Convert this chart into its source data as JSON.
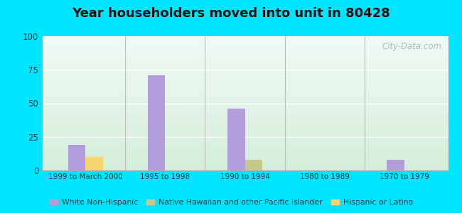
{
  "title": "Year householders moved into unit in 80428",
  "categories": [
    "1999 to March 2000",
    "1995 to 1998",
    "1990 to 1994",
    "1980 to 1989",
    "1970 to 1979"
  ],
  "series": {
    "White Non-Hispanic": [
      19,
      71,
      46,
      0,
      8
    ],
    "Native Hawaiian and other Pacific Islander": [
      0,
      0,
      8,
      0,
      0
    ],
    "Hispanic or Latino": [
      10,
      0,
      0,
      0,
      0
    ]
  },
  "colors": {
    "White Non-Hispanic": "#b39ddb",
    "Native Hawaiian and other Pacific Islander": "#c5c98a",
    "Hispanic or Latino": "#f5d76e"
  },
  "ylim": [
    0,
    100
  ],
  "yticks": [
    0,
    25,
    50,
    75,
    100
  ],
  "bg_top": "#f0faf5",
  "bg_bottom": "#d4edda",
  "outer_bg": "#00e5ff",
  "bar_width": 0.22,
  "legend_labels": [
    "White Non-Hispanic",
    "Native Hawaiian and other Pacific Islander",
    "Hispanic or Latino"
  ],
  "legend_colors": [
    "#b39ddb",
    "#c5c98a",
    "#f5d76e"
  ],
  "watermark": "City-Data.com",
  "title_fontsize": 13
}
